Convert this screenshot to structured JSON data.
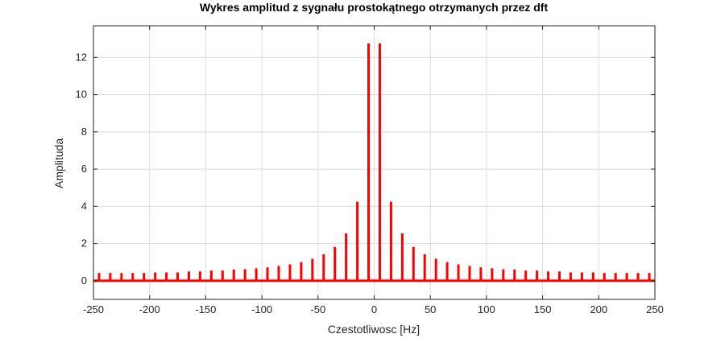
{
  "chart_data": {
    "type": "bar",
    "title": "Wykres amplitud z sygnału prostokątnego otrzymanych przez dft",
    "xlabel": "Czestotliwosc [Hz]",
    "ylabel": "Amplituda",
    "xlim": [
      -250,
      250
    ],
    "ylim": [
      -1,
      13.7
    ],
    "xticks": [
      -250,
      -200,
      -150,
      -100,
      -50,
      0,
      50,
      100,
      150,
      200,
      250
    ],
    "yticks": [
      0,
      2,
      4,
      6,
      8,
      10,
      12
    ],
    "grid": true,
    "color": "#ff0000",
    "x": [
      -245,
      -235,
      -225,
      -215,
      -205,
      -195,
      -185,
      -175,
      -165,
      -155,
      -145,
      -135,
      -125,
      -115,
      -105,
      -95,
      -85,
      -75,
      -65,
      -55,
      -45,
      -35,
      -25,
      -15,
      -5,
      5,
      15,
      25,
      35,
      45,
      55,
      65,
      75,
      85,
      95,
      105,
      115,
      125,
      135,
      145,
      155,
      165,
      175,
      185,
      195,
      205,
      215,
      225,
      235,
      245
    ],
    "y": [
      0.42,
      0.42,
      0.42,
      0.42,
      0.42,
      0.45,
      0.45,
      0.45,
      0.5,
      0.5,
      0.55,
      0.55,
      0.6,
      0.62,
      0.67,
      0.72,
      0.8,
      0.88,
      1.0,
      1.18,
      1.42,
      1.82,
      2.55,
      4.25,
      12.75,
      12.75,
      4.25,
      2.55,
      1.82,
      1.42,
      1.18,
      1.0,
      0.88,
      0.8,
      0.72,
      0.67,
      0.62,
      0.6,
      0.55,
      0.55,
      0.5,
      0.5,
      0.45,
      0.45,
      0.45,
      0.42,
      0.42,
      0.42,
      0.42,
      0.42
    ]
  }
}
